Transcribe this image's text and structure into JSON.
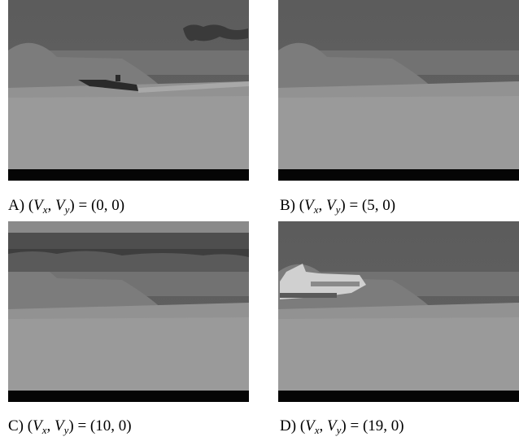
{
  "expression": {
    "open": "(",
    "v1": "V",
    "s1": "x",
    "comma": ",",
    "v2": "V",
    "s2": "y",
    "close": ")",
    "eq": "="
  },
  "panels": [
    {
      "label": "A)",
      "value": "(0, 0)"
    },
    {
      "label": "B)",
      "value": "(5, 0)"
    },
    {
      "label": "C)",
      "value": "(10, 0)"
    },
    {
      "label": "D)",
      "value": "(19, 0)"
    }
  ]
}
